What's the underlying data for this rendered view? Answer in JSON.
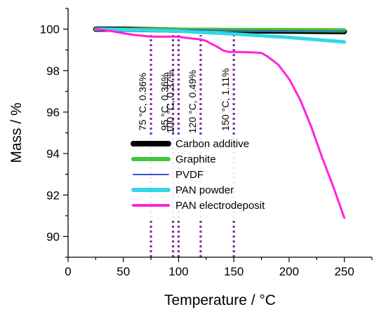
{
  "chart_data": {
    "type": "line",
    "xlabel": "Temperature / °C",
    "ylabel": "Mass / %",
    "xlim": [
      0,
      275
    ],
    "ylim": [
      89,
      101
    ],
    "x_ticks": [
      0,
      50,
      100,
      150,
      200,
      250
    ],
    "y_ticks": [
      90,
      92,
      94,
      96,
      98,
      100
    ],
    "grid": false,
    "legend_position": "lower-center",
    "series": [
      {
        "name": "Carbon additive",
        "color": "#000000",
        "x": [
          25,
          50,
          100,
          150,
          200,
          250
        ],
        "y": [
          100.0,
          100.0,
          99.95,
          99.92,
          99.9,
          99.88
        ]
      },
      {
        "name": "Graphite",
        "color": "#3cc83c",
        "x": [
          25,
          50,
          100,
          150,
          200,
          250
        ],
        "y": [
          100.0,
          100.0,
          99.99,
          99.98,
          99.97,
          99.96
        ]
      },
      {
        "name": "PVDF",
        "color": "#3b4fd6",
        "x": [
          25,
          50,
          100,
          150,
          200,
          250
        ],
        "y": [
          100.0,
          99.99,
          99.97,
          99.94,
          99.92,
          99.9
        ]
      },
      {
        "name": "PAN powder",
        "color": "#33d7e6",
        "x": [
          25,
          50,
          100,
          150,
          200,
          250
        ],
        "y": [
          100.0,
          99.97,
          99.9,
          99.77,
          99.6,
          99.38
        ]
      },
      {
        "name": "PAN electrodeposit",
        "color": "#ff22dd",
        "x": [
          25,
          40,
          50,
          60,
          75,
          85,
          95,
          100,
          110,
          120,
          125,
          130,
          135,
          140,
          145,
          150,
          160,
          170,
          175,
          180,
          190,
          200,
          210,
          220,
          230,
          240,
          250
        ],
        "y": [
          100.0,
          99.9,
          99.8,
          99.72,
          99.64,
          99.64,
          99.64,
          99.63,
          99.56,
          99.51,
          99.43,
          99.28,
          99.15,
          98.98,
          98.9,
          98.9,
          98.89,
          98.87,
          98.85,
          98.7,
          98.3,
          97.6,
          96.6,
          95.3,
          93.8,
          92.4,
          90.9
        ]
      }
    ],
    "annotations": [
      {
        "x": 75,
        "label": "75 °C, 0.36%"
      },
      {
        "x": 95,
        "label": "95 °C, 0.36%"
      },
      {
        "x": 100,
        "label": "100 °C, 0.37%"
      },
      {
        "x": 120,
        "label": "120 °C, 0.49%"
      },
      {
        "x": 150,
        "label": "150 °C, 1.11%"
      }
    ],
    "annotation_line_color": "#7b2fa8"
  }
}
